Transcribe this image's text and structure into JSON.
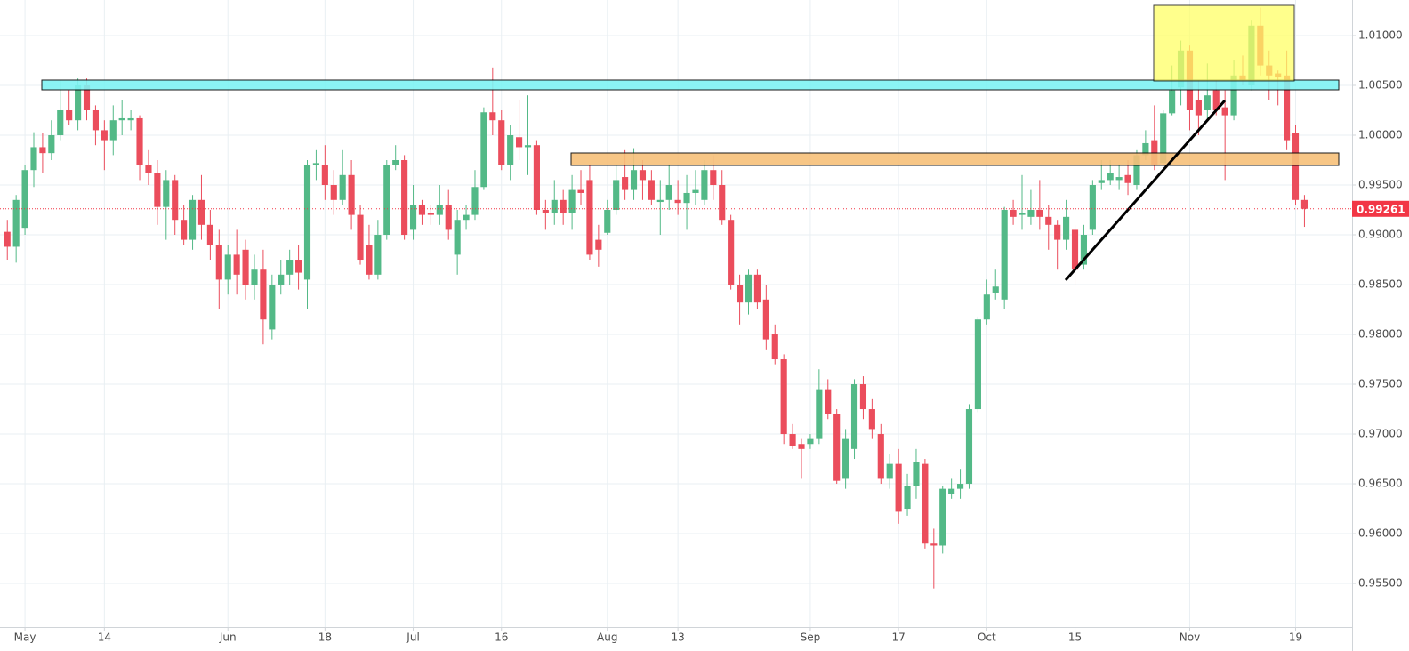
{
  "chart_data": {
    "type": "candlestick",
    "up_color": "#53b987",
    "down_color": "#eb4d5c",
    "grid": true,
    "last_price": 0.99261,
    "last_price_color": "#f23645",
    "ylim": [
      0.95063,
      1.01357
    ],
    "xlim": [
      -0.83,
      152.4
    ],
    "yticks": [
      {
        "value": 1.01,
        "label": "1.01000"
      },
      {
        "value": 1.005,
        "label": "1.00500"
      },
      {
        "value": 1.0,
        "label": "1.00000"
      },
      {
        "value": 0.995,
        "label": "0.99500"
      },
      {
        "value": 0.99,
        "label": "0.99000"
      },
      {
        "value": 0.985,
        "label": "0.98500"
      },
      {
        "value": 0.98,
        "label": "0.98000"
      },
      {
        "value": 0.975,
        "label": "0.97500"
      },
      {
        "value": 0.97,
        "label": "0.97000"
      },
      {
        "value": 0.965,
        "label": "0.96500"
      },
      {
        "value": 0.96,
        "label": "0.96000"
      },
      {
        "value": 0.955,
        "label": "0.95500"
      }
    ],
    "xticks": [
      {
        "value": 2,
        "label": "May"
      },
      {
        "value": 11,
        "label": "14"
      },
      {
        "value": 25,
        "label": "Jun"
      },
      {
        "value": 36,
        "label": "18"
      },
      {
        "value": 46,
        "label": "Jul"
      },
      {
        "value": 56,
        "label": "16"
      },
      {
        "value": 68,
        "label": "Aug"
      },
      {
        "value": 76,
        "label": "13"
      },
      {
        "value": 91,
        "label": "Sep"
      },
      {
        "value": 101,
        "label": "17"
      },
      {
        "value": 111,
        "label": "Oct"
      },
      {
        "value": 121,
        "label": "15"
      },
      {
        "value": 134,
        "label": "Nov"
      },
      {
        "value": 146,
        "label": "19"
      }
    ],
    "open": [
      0.9903,
      0.9888,
      0.9907,
      0.9965,
      0.9988,
      0.9982,
      1.0,
      1.0025,
      1.0015,
      1.005,
      1.0025,
      1.0005,
      0.9995,
      1.0015,
      1.0015,
      1.0017,
      0.997,
      0.9962,
      0.9928,
      0.9955,
      0.9915,
      0.9895,
      0.9935,
      0.991,
      0.989,
      0.9855,
      0.988,
      0.9885,
      0.985,
      0.9865,
      0.9805,
      0.985,
      0.986,
      0.9875,
      0.9855,
      0.997,
      0.997,
      0.995,
      0.9935,
      0.996,
      0.992,
      0.989,
      0.986,
      0.99,
      0.997,
      0.9975,
      0.9905,
      0.993,
      0.9922,
      0.992,
      0.993,
      0.988,
      0.9915,
      0.992,
      0.9948,
      1.0023,
      1.0015,
      0.997,
      0.9998,
      0.9988,
      0.999,
      0.9925,
      0.9922,
      0.9935,
      0.9922,
      0.9945,
      0.9955,
      0.9895,
      0.9902,
      0.9925,
      0.9958,
      0.9945,
      0.9965,
      0.9955,
      0.9933,
      0.9935,
      0.9935,
      0.9932,
      0.9942,
      0.9935,
      0.9965,
      0.995,
      0.9915,
      0.985,
      0.9832,
      0.986,
      0.9835,
      0.98,
      0.9775,
      0.97,
      0.969,
      0.969,
      0.9695,
      0.9745,
      0.972,
      0.9655,
      0.9685,
      0.975,
      0.9725,
      0.97,
      0.9655,
      0.967,
      0.9625,
      0.9648,
      0.967,
      0.959,
      0.9588,
      0.964,
      0.9645,
      0.965,
      0.9725,
      0.9815,
      0.9842,
      0.9835,
      0.9925,
      0.992,
      0.9918,
      0.9925,
      0.9918,
      0.991,
      0.9895,
      0.9905,
      0.987,
      0.9905,
      0.9952,
      0.9955,
      0.9955,
      0.996,
      0.995,
      0.998,
      0.9995,
      0.9972,
      1.0022,
      1.0048,
      1.0085,
      1.0035,
      1.0025,
      1.0045,
      1.0028,
      1.002,
      1.006,
      1.005,
      1.011,
      1.007,
      1.0062,
      1.006,
      1.0002,
      0.9935
    ],
    "high": [
      0.9915,
      0.994,
      0.997,
      1.0003,
      1.0002,
      1.0015,
      1.0055,
      1.0045,
      1.0057,
      1.0057,
      1.003,
      1.0015,
      1.003,
      1.0035,
      1.0025,
      1.002,
      0.9985,
      0.9975,
      0.9965,
      0.996,
      0.993,
      0.994,
      0.996,
      0.9925,
      0.9905,
      0.989,
      0.9905,
      0.9895,
      0.988,
      0.9885,
      0.986,
      0.9875,
      0.9885,
      0.989,
      0.9975,
      0.9985,
      0.999,
      0.9965,
      0.9985,
      0.9975,
      0.993,
      0.991,
      0.9915,
      0.9975,
      0.999,
      0.998,
      0.995,
      0.9935,
      0.993,
      0.995,
      0.9945,
      0.9925,
      0.993,
      0.9965,
      1.0028,
      1.0068,
      1.0025,
      1.001,
      1.0035,
      1.004,
      0.9995,
      0.9935,
      0.9955,
      0.9945,
      0.996,
      0.9965,
      0.997,
      0.991,
      0.9935,
      0.997,
      0.9985,
      0.9987,
      0.9975,
      0.9965,
      0.9955,
      0.997,
      0.9955,
      0.996,
      0.9965,
      0.9975,
      0.998,
      0.9965,
      0.992,
      0.986,
      0.9865,
      0.9865,
      0.985,
      0.981,
      0.978,
      0.971,
      0.9695,
      0.97,
      0.9765,
      0.9755,
      0.9725,
      0.9705,
      0.9755,
      0.9758,
      0.9735,
      0.971,
      0.968,
      0.9685,
      0.966,
      0.9685,
      0.9675,
      0.9605,
      0.9648,
      0.9655,
      0.9665,
      0.973,
      0.9818,
      0.9855,
      0.9865,
      0.9928,
      0.9935,
      0.996,
      0.9945,
      0.9955,
      0.993,
      0.9915,
      0.9935,
      0.991,
      0.991,
      0.9955,
      0.9975,
      0.9975,
      0.997,
      0.9975,
      0.9985,
      1.0005,
      1.003,
      1.0025,
      1.007,
      1.0095,
      1.009,
      1.0055,
      1.0072,
      1.0055,
      1.0045,
      1.0075,
      1.008,
      1.0115,
      1.0128,
      1.0085,
      1.0065,
      1.0085,
      1.001,
      0.994
    ],
    "low": [
      0.9875,
      0.9872,
      0.99,
      0.9948,
      0.9962,
      0.9975,
      0.9995,
      1.001,
      1.0005,
      1.0015,
      0.999,
      0.9965,
      0.998,
      1.0,
      1.0005,
      0.9955,
      0.995,
      0.991,
      0.9895,
      0.99,
      0.989,
      0.9885,
      0.9895,
      0.9875,
      0.9825,
      0.984,
      0.984,
      0.9835,
      0.9835,
      0.979,
      0.9795,
      0.984,
      0.985,
      0.9845,
      0.9825,
      0.9955,
      0.9935,
      0.992,
      0.993,
      0.9905,
      0.987,
      0.9855,
      0.9855,
      0.9895,
      0.9965,
      0.9895,
      0.9895,
      0.991,
      0.991,
      0.991,
      0.9895,
      0.986,
      0.9905,
      0.9915,
      0.9945,
      1.0,
      0.9965,
      0.9955,
      0.9975,
      0.996,
      0.992,
      0.9905,
      0.991,
      0.991,
      0.9905,
      0.993,
      0.9875,
      0.9868,
      0.99,
      0.992,
      0.9935,
      0.9935,
      0.9935,
      0.993,
      0.99,
      0.9925,
      0.992,
      0.9905,
      0.993,
      0.993,
      0.9935,
      0.991,
      0.9845,
      0.981,
      0.982,
      0.9825,
      0.9785,
      0.977,
      0.969,
      0.9685,
      0.9655,
      0.9685,
      0.969,
      0.9715,
      0.965,
      0.9645,
      0.9675,
      0.9715,
      0.9695,
      0.965,
      0.9645,
      0.961,
      0.9618,
      0.9635,
      0.9585,
      0.9545,
      0.958,
      0.9635,
      0.9635,
      0.9645,
      0.9722,
      0.981,
      0.9835,
      0.9825,
      0.991,
      0.9905,
      0.991,
      0.9905,
      0.9885,
      0.9865,
      0.9885,
      0.985,
      0.9865,
      0.99,
      0.9945,
      0.995,
      0.9945,
      0.994,
      0.9945,
      0.9975,
      0.9965,
      0.997,
      1.002,
      1.003,
      1.0005,
      1.0,
      1.0015,
      1.002,
      0.9955,
      1.0015,
      1.005,
      1.0045,
      1.006,
      1.0035,
      1.003,
      0.9985,
      0.993,
      0.9908
    ],
    "close": [
      0.9888,
      0.9935,
      0.9965,
      0.9988,
      0.9982,
      1.0,
      1.0025,
      1.0015,
      1.005,
      1.0025,
      1.0005,
      0.9995,
      1.0015,
      1.0017,
      1.0017,
      0.997,
      0.9962,
      0.9928,
      0.9955,
      0.9915,
      0.9895,
      0.9935,
      0.991,
      0.989,
      0.9855,
      0.988,
      0.986,
      0.985,
      0.9865,
      0.9815,
      0.985,
      0.986,
      0.9875,
      0.9862,
      0.997,
      0.9972,
      0.995,
      0.9935,
      0.996,
      0.992,
      0.9875,
      0.986,
      0.99,
      0.997,
      0.9975,
      0.99,
      0.993,
      0.992,
      0.992,
      0.993,
      0.9905,
      0.9915,
      0.992,
      0.9948,
      1.0023,
      1.0015,
      0.997,
      1.0,
      0.9988,
      0.999,
      0.9925,
      0.9922,
      0.9935,
      0.9922,
      0.9945,
      0.9942,
      0.988,
      0.9885,
      0.9925,
      0.9955,
      0.9945,
      0.9965,
      0.9955,
      0.9935,
      0.9935,
      0.995,
      0.9932,
      0.9942,
      0.9945,
      0.9965,
      0.995,
      0.9915,
      0.985,
      0.9832,
      0.986,
      0.9832,
      0.9795,
      0.9775,
      0.97,
      0.9688,
      0.9685,
      0.9695,
      0.9745,
      0.972,
      0.9653,
      0.9695,
      0.975,
      0.9725,
      0.9705,
      0.9655,
      0.967,
      0.9622,
      0.9648,
      0.9672,
      0.959,
      0.9588,
      0.9645,
      0.9645,
      0.965,
      0.9725,
      0.9815,
      0.984,
      0.9848,
      0.9925,
      0.9918,
      0.9922,
      0.9925,
      0.9918,
      0.991,
      0.9895,
      0.9918,
      0.9865,
      0.99,
      0.995,
      0.9955,
      0.9962,
      0.9958,
      0.9952,
      0.998,
      0.9992,
      0.997,
      1.0022,
      1.0045,
      1.0085,
      1.0025,
      1.002,
      1.004,
      1.0025,
      1.002,
      1.006,
      1.0055,
      1.011,
      1.007,
      1.006,
      1.0058,
      0.9995,
      0.9935,
      0.99261
    ]
  }
}
